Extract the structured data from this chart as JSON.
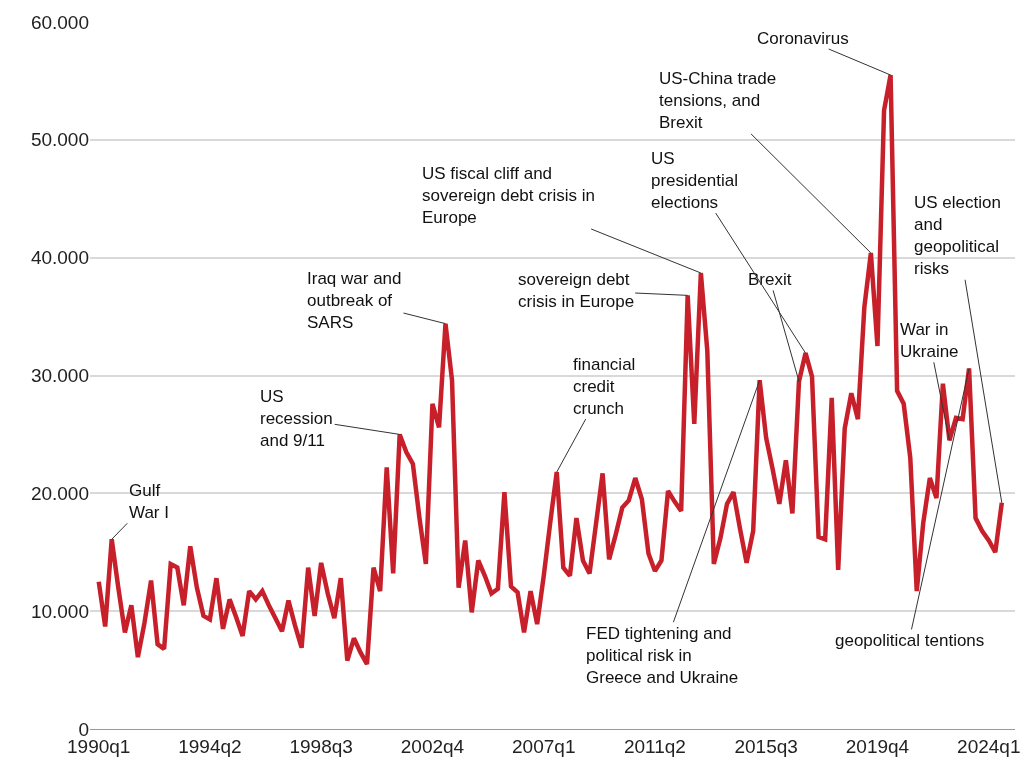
{
  "chart_data": {
    "type": "line",
    "x": [
      "1990-01",
      "1990-04",
      "1990-07",
      "1990-10",
      "1991-01",
      "1991-04",
      "1991-07",
      "1991-10",
      "1992-01",
      "1992-04",
      "1992-07",
      "1992-10",
      "1993-01",
      "1993-04",
      "1993-07",
      "1993-10",
      "1994-01",
      "1994-04",
      "1994-07",
      "1994-10",
      "1995-01",
      "1995-04",
      "1995-07",
      "1995-10",
      "1996-01",
      "1996-04",
      "1996-07",
      "1996-10",
      "1997-01",
      "1997-04",
      "1997-07",
      "1997-10",
      "1998-01",
      "1998-04",
      "1998-07",
      "1998-10",
      "1999-01",
      "1999-04",
      "1999-07",
      "1999-10",
      "2000-01",
      "2000-04",
      "2000-07",
      "2000-10",
      "2001-01",
      "2001-04",
      "2001-07",
      "2001-10",
      "2002-01",
      "2002-04",
      "2002-07",
      "2002-10",
      "2003-01",
      "2003-04",
      "2003-07",
      "2003-10",
      "2004-01",
      "2004-04",
      "2004-07",
      "2004-10",
      "2005-01",
      "2005-04",
      "2005-07",
      "2005-10",
      "2006-01",
      "2006-04",
      "2006-07",
      "2006-10",
      "2007-01",
      "2007-04",
      "2007-07",
      "2007-10",
      "2008-01",
      "2008-04",
      "2008-07",
      "2008-10",
      "2009-01",
      "2009-04",
      "2009-07",
      "2009-10",
      "2010-01",
      "2010-04",
      "2010-07",
      "2010-10",
      "2011-01",
      "2011-04",
      "2011-07",
      "2011-10",
      "2012-01",
      "2012-04",
      "2012-07",
      "2012-10",
      "2013-01",
      "2013-04",
      "2013-07",
      "2013-10",
      "2014-01",
      "2014-04",
      "2014-07",
      "2014-10",
      "2015-01",
      "2015-04",
      "2015-07",
      "2015-10",
      "2016-01",
      "2016-04",
      "2016-07",
      "2016-10",
      "2017-01",
      "2017-04",
      "2017-07",
      "2017-10",
      "2018-01",
      "2018-04",
      "2018-07",
      "2018-10",
      "2019-01",
      "2019-04",
      "2019-07",
      "2019-10",
      "2020-01",
      "2020-04",
      "2020-07",
      "2020-10",
      "2021-01",
      "2021-04",
      "2021-07",
      "2021-10",
      "2022-01",
      "2022-04",
      "2022-07",
      "2022-10",
      "2023-01",
      "2023-04",
      "2023-07",
      "2023-10",
      "2024-01",
      "2024-04",
      "2024-07"
    ],
    "series": [
      {
        "color": "#c8202a",
        "values": [
          12500,
          8700,
          16100,
          12000,
          8200,
          10500,
          6100,
          9000,
          12600,
          7200,
          6800,
          14000,
          13700,
          10500,
          15500,
          12000,
          9600,
          9300,
          12800,
          8500,
          11000,
          9500,
          7900,
          11700,
          11000,
          11700,
          10500,
          9400,
          8300,
          10900,
          8800,
          6900,
          13700,
          9600,
          14100,
          11500,
          9400,
          12800,
          5800,
          7700,
          6500,
          5500,
          13700,
          11700,
          22200,
          13200,
          25000,
          23500,
          22500,
          18000,
          14000,
          27600,
          25600,
          34400,
          29600,
          12000,
          16000,
          9900,
          14300,
          13000,
          11500,
          11900,
          20100,
          12100,
          11600,
          8200,
          11700,
          8900,
          13000,
          17500,
          21800,
          13700,
          13000,
          17900,
          14300,
          13200,
          17500,
          21700,
          14400,
          16500,
          18800,
          19400,
          21300,
          19500,
          14900,
          13400,
          14300,
          20200,
          19300,
          18500,
          36800,
          25900,
          38700,
          32100,
          14000,
          16200,
          19100,
          20100,
          17000,
          14100,
          16800,
          29600,
          24700,
          22000,
          19100,
          22800,
          18300,
          29500,
          31900,
          29900,
          16300,
          16100,
          28100,
          13500,
          25500,
          28500,
          26300,
          35800,
          40400,
          32500,
          52500,
          55500,
          28700,
          27600,
          23000,
          11700,
          17500,
          21300,
          19600,
          29300,
          24500,
          26400,
          26300,
          30600,
          17900,
          16800,
          16000,
          15000,
          19200
        ]
      }
    ],
    "xlim": [
      "1989-09",
      "2025-01"
    ],
    "xticks": [
      {
        "value": "1990-01",
        "label": "1990q1"
      },
      {
        "value": "1994-04",
        "label": "1994q2"
      },
      {
        "value": "1998-07",
        "label": "1998q3"
      },
      {
        "value": "2002-10",
        "label": "2002q4"
      },
      {
        "value": "2007-01",
        "label": "2007q1"
      },
      {
        "value": "2011-04",
        "label": "2011q2"
      },
      {
        "value": "2015-07",
        "label": "2015q3"
      },
      {
        "value": "2019-10",
        "label": "2019q4"
      },
      {
        "value": "2024-01",
        "label": "2024q1"
      }
    ],
    "ylim": [
      0,
      60000
    ],
    "yticks": [
      {
        "value": 0,
        "label": "0"
      },
      {
        "value": 10000,
        "label": "10.000"
      },
      {
        "value": 20000,
        "label": "20.000"
      },
      {
        "value": 30000,
        "label": "30.000"
      },
      {
        "value": 40000,
        "label": "40.000"
      },
      {
        "value": 50000,
        "label": "50.000"
      },
      {
        "value": 60000,
        "label": "60.000"
      }
    ],
    "grid": "y",
    "annotations": [
      {
        "text": "Gulf\nWar I",
        "x": "1990-07",
        "y": 16100
      },
      {
        "text": "US\nrecession\nand 9/11",
        "x": "2001-07",
        "y": 25000
      },
      {
        "text": "Iraq war and\noutbreak of\nSARS",
        "x": "2003-04",
        "y": 34400
      },
      {
        "text": "financial\ncredit\ncrunch",
        "x": "2007-07",
        "y": 21800
      },
      {
        "text": "sovereign debt\ncrisis in Europe",
        "x": "2012-07",
        "y": 36800
      },
      {
        "text": "US fiscal cliff and\nsovereign debt crisis in\nEurope",
        "x": "2013-01",
        "y": 38700
      },
      {
        "text": "FED tightening and\npolitical risk in\nGreece and Ukraine",
        "x": "2015-04",
        "y": 29600
      },
      {
        "text": "Brexit",
        "x": "2016-10",
        "y": 29500
      },
      {
        "text": "US\npresidential\nelections",
        "x": "2017-01",
        "y": 31900
      },
      {
        "text": "US-China trade\ntensions, and\nBrexit",
        "x": "2019-07",
        "y": 40400
      },
      {
        "text": "Coronavirus",
        "x": "2020-04",
        "y": 55500
      },
      {
        "text": "War in\nUkraine",
        "x": "2022-07",
        "y": 24500
      },
      {
        "text": "geopolitical tentions",
        "x": "2023-04",
        "y": 30600
      },
      {
        "text": "US election\nand\ngeopolitical\nrisks",
        "x": "2024-07",
        "y": 19200
      }
    ]
  }
}
